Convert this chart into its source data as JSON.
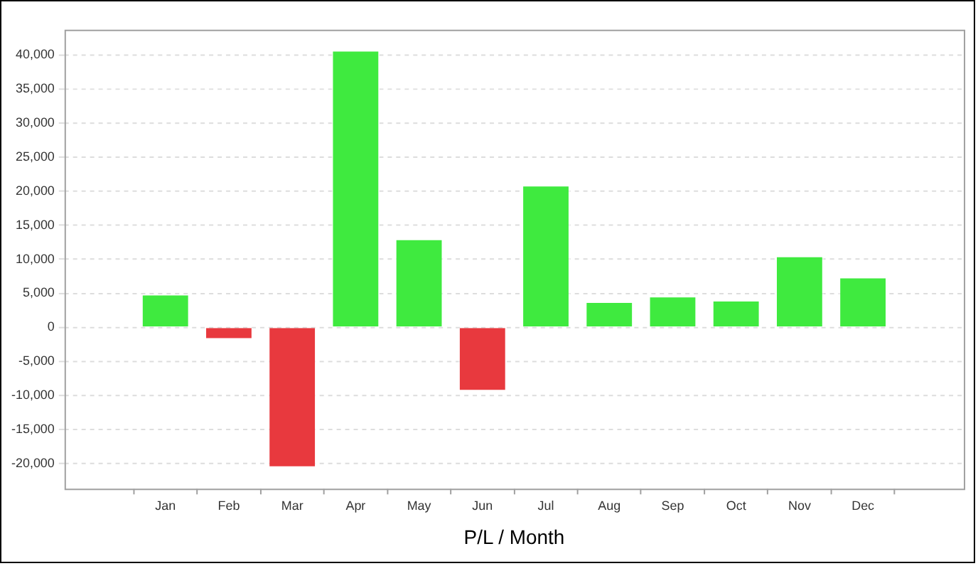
{
  "chart_data": {
    "type": "bar",
    "xlabel": "P/L / Month",
    "categories": [
      "Jan",
      "Feb",
      "Mar",
      "Apr",
      "May",
      "Jun",
      "Jul",
      "Aug",
      "Sep",
      "Oct",
      "Nov",
      "Dec"
    ],
    "values": [
      4900,
      -1800,
      -20600,
      40700,
      13000,
      -9400,
      20900,
      3800,
      4600,
      4000,
      10500,
      7400
    ],
    "colors": [
      "#3fea3f",
      "#e8393e",
      "#e8393e",
      "#3fea3f",
      "#3fea3f",
      "#e8393e",
      "#3fea3f",
      "#3fea3f",
      "#3fea3f",
      "#3fea3f",
      "#3fea3f",
      "#3fea3f"
    ],
    "ylim": [
      -23700,
      43700
    ],
    "yticks": [
      {
        "value": -20000,
        "label": "-20,000"
      },
      {
        "value": -15000,
        "label": "-15,000"
      },
      {
        "value": -10000,
        "label": "-10,000"
      },
      {
        "value": -5000,
        "label": "-5,000"
      },
      0,
      {
        "value": 5000,
        "label": "5,000"
      },
      {
        "value": 10000,
        "label": "10,000"
      },
      {
        "value": 15000,
        "label": "15,000"
      },
      {
        "value": 20000,
        "label": "20,000"
      },
      {
        "value": 25000,
        "label": "25,000"
      },
      {
        "value": 30000,
        "label": "30,000"
      },
      {
        "value": 35000,
        "label": "35,000"
      },
      {
        "value": 40000,
        "label": "40,000"
      }
    ],
    "grid": "y",
    "legend": false
  }
}
